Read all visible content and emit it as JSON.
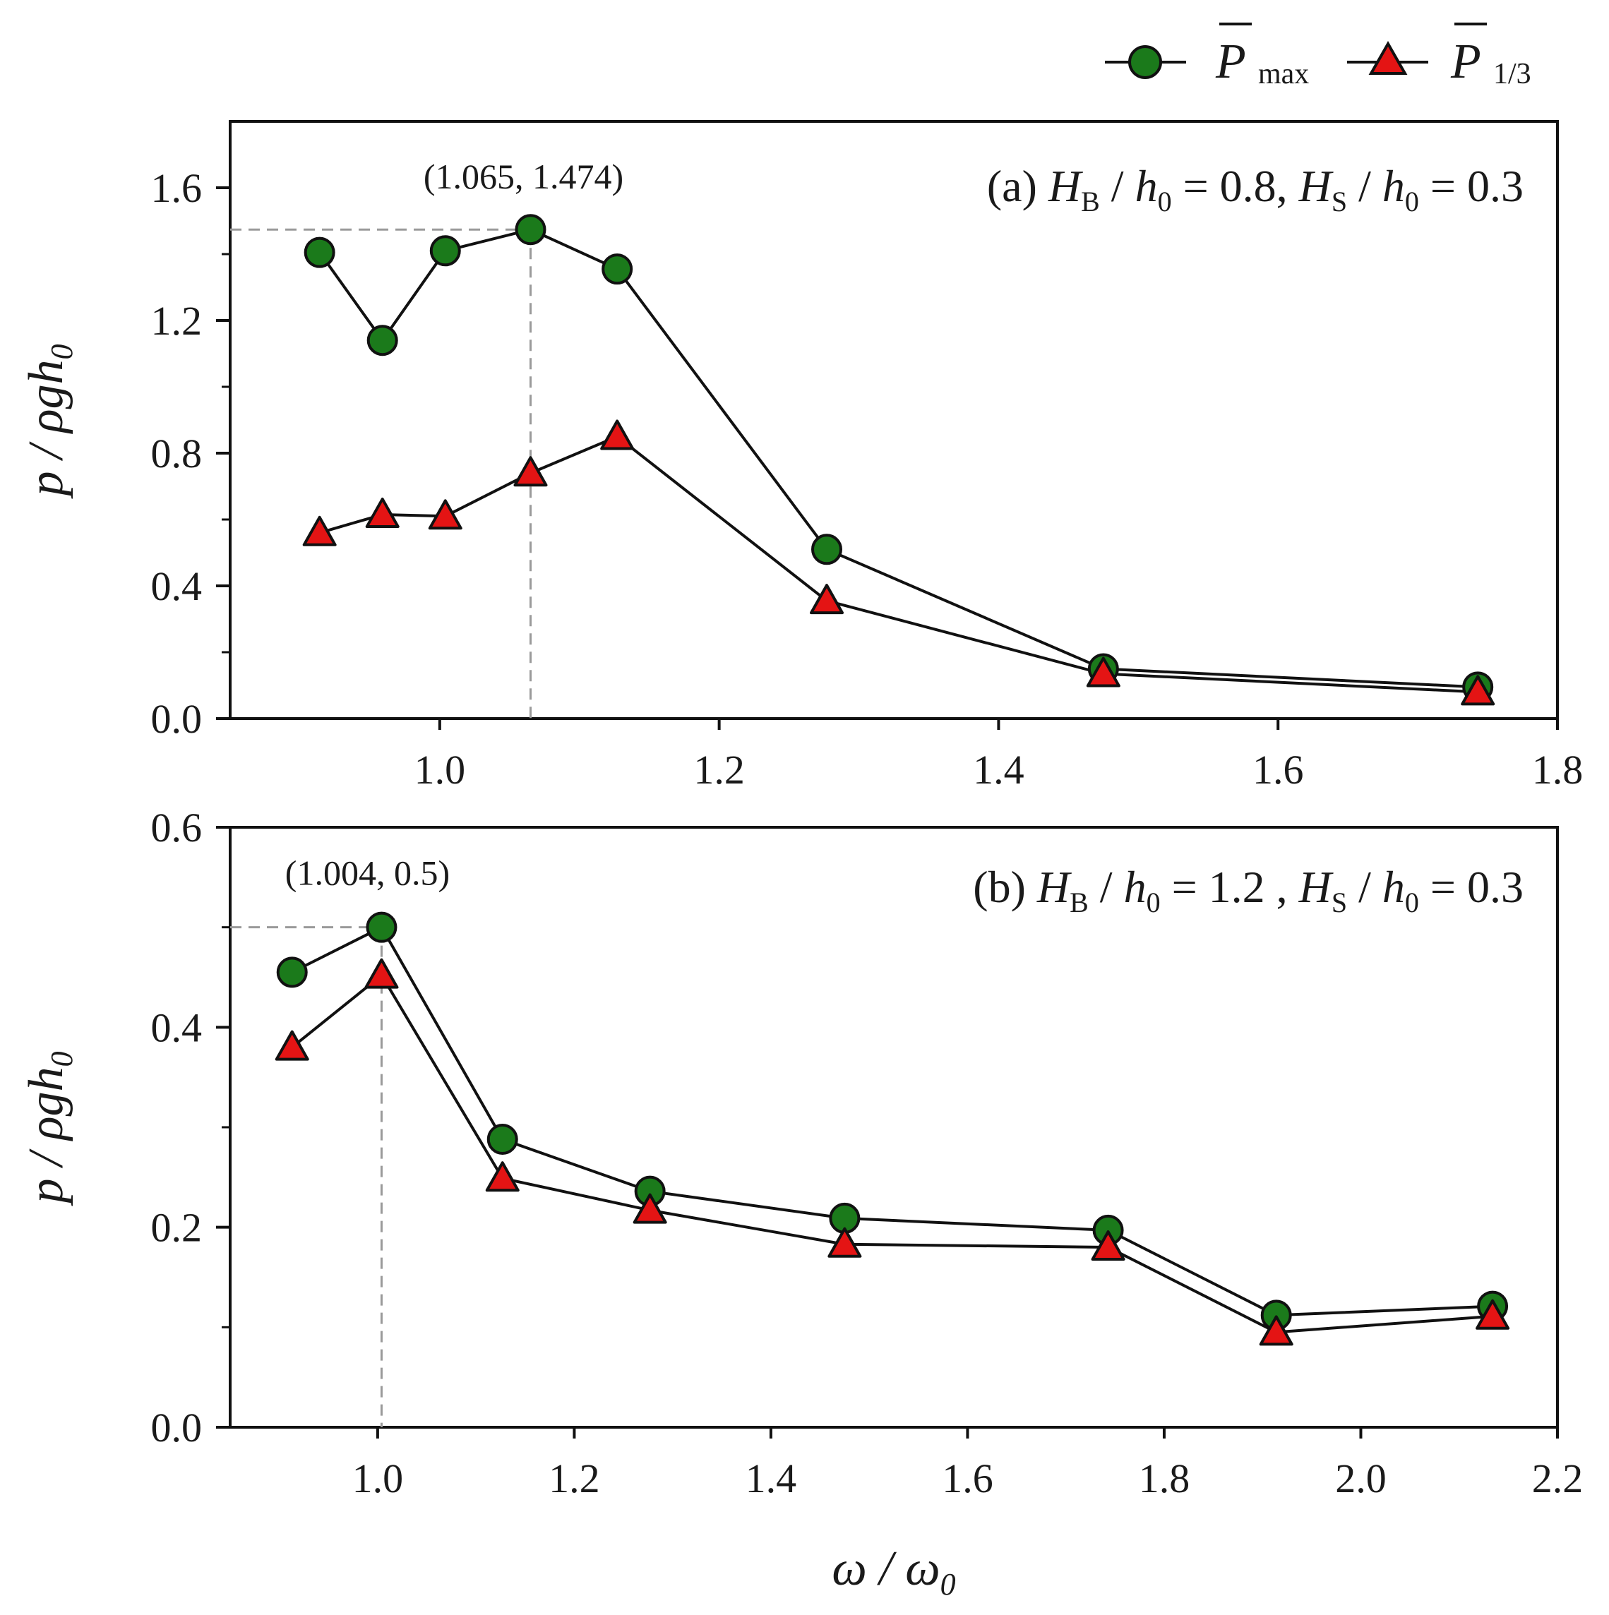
{
  "legend": {
    "series_max_label": "P",
    "series_max_sub": "max",
    "series_third_label": "P",
    "series_third_sub": "1/3"
  },
  "colors": {
    "green_marker": "#1b7a1b",
    "red_marker": "#e41414",
    "line": "#111111",
    "dashed": "#9a9a9a"
  },
  "chart_data": [
    {
      "type": "line",
      "panel": "a",
      "title_prefix": "(a)",
      "condition": {
        "hb_label": "H",
        "hb_sub": "B",
        "hb_den": "h",
        "hb_den_sub": "0",
        "hb_value": "0.8,",
        "hs_label": "H",
        "hs_sub": "S",
        "hs_den": "h",
        "hs_den_sub": "0",
        "hs_value": "0.3"
      },
      "ylabel": "p / ρgh",
      "ylabel_sub": "0",
      "xlim": [
        0.85,
        1.8
      ],
      "ylim": [
        0.0,
        1.8
      ],
      "x_ticks": [
        1.0,
        1.2,
        1.4,
        1.6,
        1.8
      ],
      "x_tick_labels": [
        "1.0",
        "1.2",
        "1.4",
        "1.6",
        "1.8"
      ],
      "y_ticks": [
        0.0,
        0.4,
        0.8,
        1.2,
        1.6
      ],
      "y_tick_labels": [
        "0.0",
        "0.4",
        "0.8",
        "1.2",
        "1.6"
      ],
      "y_minor_ticks": [
        0.2,
        0.6,
        1.0,
        1.4
      ],
      "annotation": {
        "text": "(1.065, 1.474)",
        "x": 1.065,
        "y": 1.474
      },
      "x": [
        0.914,
        0.959,
        1.004,
        1.065,
        1.127,
        1.277,
        1.475,
        1.743
      ],
      "series": [
        {
          "name": "P_max",
          "marker": "circle",
          "values": [
            1.405,
            1.14,
            1.41,
            1.474,
            1.355,
            0.51,
            0.15,
            0.095
          ]
        },
        {
          "name": "P_1/3",
          "marker": "triangle",
          "values": [
            0.56,
            0.615,
            0.61,
            0.74,
            0.85,
            0.355,
            0.135,
            0.08
          ]
        }
      ]
    },
    {
      "type": "line",
      "panel": "b",
      "title_prefix": "(b)",
      "condition": {
        "hb_label": "H",
        "hb_sub": "B",
        "hb_den": "h",
        "hb_den_sub": "0",
        "hb_value": "1.2 ,",
        "hs_label": "H",
        "hs_sub": "S",
        "hs_den": "h",
        "hs_den_sub": "0",
        "hs_value": "0.3"
      },
      "xlabel": "ω / ω",
      "xlabel_sub": "0",
      "ylabel": "p / ρgh",
      "ylabel_sub": "0",
      "xlim": [
        0.85,
        2.2
      ],
      "ylim": [
        0.0,
        0.6
      ],
      "x_ticks": [
        1.0,
        1.2,
        1.4,
        1.6,
        1.8,
        2.0,
        2.2
      ],
      "x_tick_labels": [
        "1.0",
        "1.2",
        "1.4",
        "1.6",
        "1.8",
        "2.0",
        "2.2"
      ],
      "y_ticks": [
        0.0,
        0.2,
        0.4,
        0.6
      ],
      "y_tick_labels": [
        "0.0",
        "0.2",
        "0.4",
        "0.6"
      ],
      "y_minor_ticks": [
        0.1,
        0.3,
        0.5
      ],
      "annotation": {
        "text": "(1.004, 0.5)",
        "x": 1.004,
        "y": 0.5
      },
      "x": [
        0.913,
        1.004,
        1.127,
        1.277,
        1.475,
        1.743,
        1.914,
        2.134
      ],
      "series": [
        {
          "name": "P_max",
          "marker": "circle",
          "values": [
            0.455,
            0.5,
            0.288,
            0.236,
            0.209,
            0.197,
            0.112,
            0.121
          ]
        },
        {
          "name": "P_1/3",
          "marker": "triangle",
          "values": [
            0.38,
            0.452,
            0.249,
            0.217,
            0.183,
            0.18,
            0.095,
            0.111
          ]
        }
      ]
    }
  ]
}
